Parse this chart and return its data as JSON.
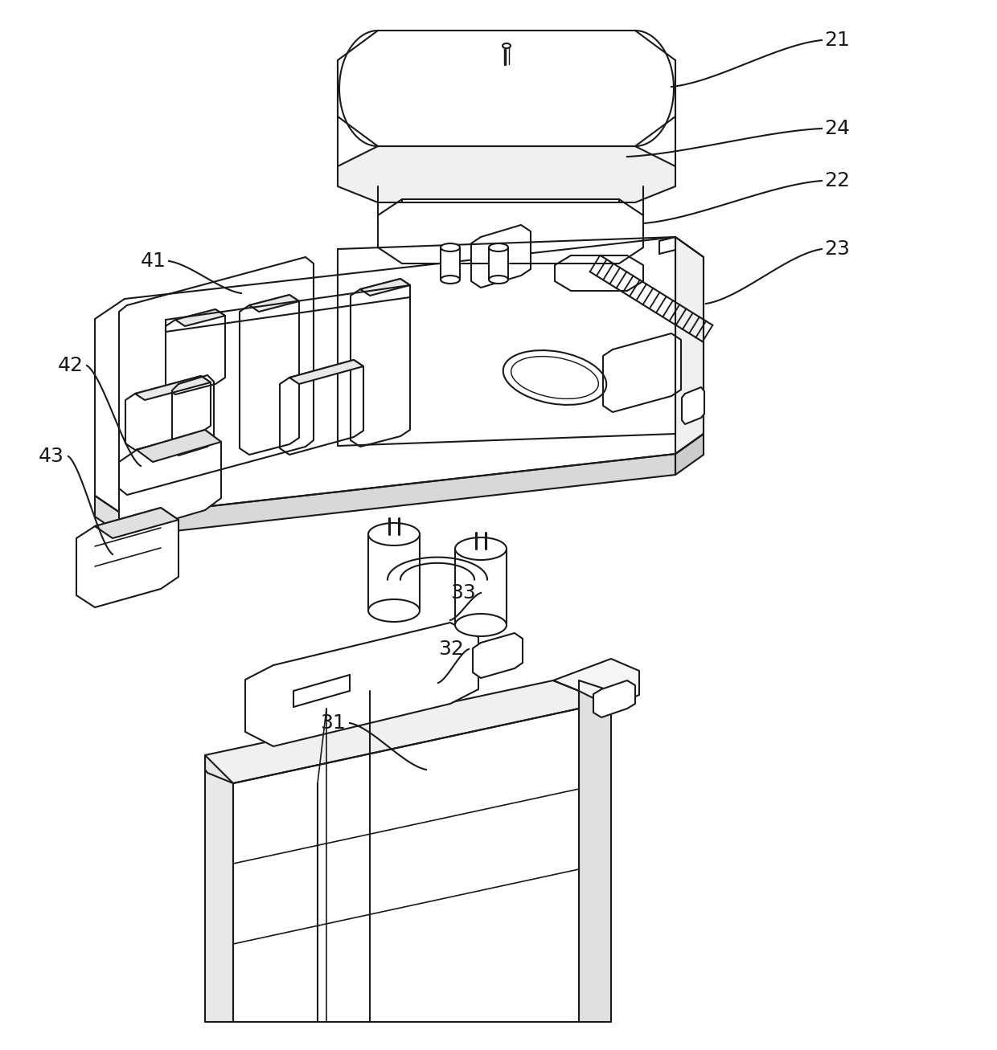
{
  "background_color": "#ffffff",
  "line_color": "#1a1a1a",
  "label_color": "#1a1a1a",
  "line_width": 1.5,
  "font_size": 18
}
